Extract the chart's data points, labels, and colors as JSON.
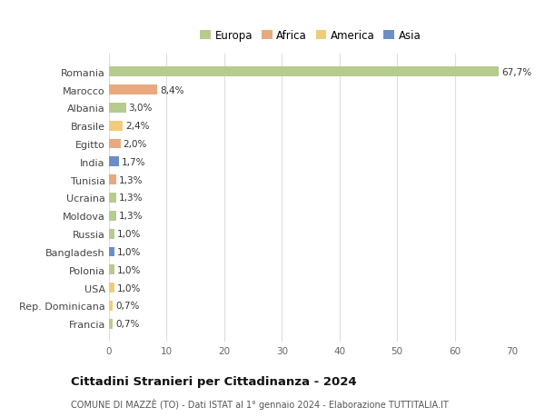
{
  "categories": [
    "Romania",
    "Marocco",
    "Albania",
    "Brasile",
    "Egitto",
    "India",
    "Tunisia",
    "Ucraina",
    "Moldova",
    "Russia",
    "Bangladesh",
    "Polonia",
    "USA",
    "Rep. Dominicana",
    "Francia"
  ],
  "values": [
    67.7,
    8.4,
    3.0,
    2.4,
    2.0,
    1.7,
    1.3,
    1.3,
    1.3,
    1.0,
    1.0,
    1.0,
    1.0,
    0.7,
    0.7
  ],
  "labels": [
    "67,7%",
    "8,4%",
    "3,0%",
    "2,4%",
    "2,0%",
    "1,7%",
    "1,3%",
    "1,3%",
    "1,3%",
    "1,0%",
    "1,0%",
    "1,0%",
    "1,0%",
    "0,7%",
    "0,7%"
  ],
  "continents": [
    "Europa",
    "Africa",
    "Europa",
    "America",
    "Africa",
    "Asia",
    "Africa",
    "Europa",
    "Europa",
    "Europa",
    "Asia",
    "Europa",
    "America",
    "America",
    "Europa"
  ],
  "colors": {
    "Europa": "#b5cc8e",
    "Africa": "#e8a97e",
    "America": "#f0cc7a",
    "Asia": "#6a8fc8"
  },
  "title": "Cittadini Stranieri per Cittadinanza - 2024",
  "subtitle": "COMUNE DI MAZZÈ (TO) - Dati ISTAT al 1° gennaio 2024 - Elaborazione TUTTITALIA.IT",
  "xlim": [
    0,
    70
  ],
  "xticks": [
    0,
    10,
    20,
    30,
    40,
    50,
    60,
    70
  ],
  "background_color": "#ffffff",
  "grid_color": "#dddddd",
  "bar_height": 0.55
}
